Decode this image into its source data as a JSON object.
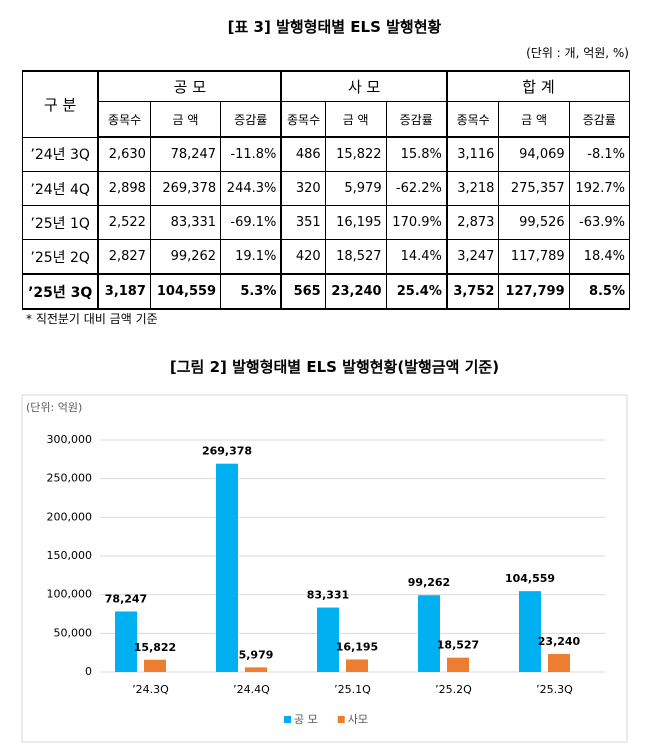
{
  "table_title": "[표 3] 발행형태별 ELS 발행현황",
  "unit": "(단위 : 개, 억원, %)",
  "table": {
    "header": [
      "구 분",
      "공 모",
      "사 모",
      "합 계"
    ],
    "subheader": [
      "종목수",
      "금 액",
      "증감률",
      "종목수",
      "금 액",
      "증감률",
      "종목수",
      "금 액",
      "증감률"
    ],
    "rows": [
      [
        "’24년 3Q",
        "2,630",
        "78,247",
        "-11.8%",
        "486",
        "15,822",
        "15.8%",
        "3,116",
        "94,069",
        "-8.1%"
      ],
      [
        "’24년 4Q",
        "2,898",
        "269,378",
        "244.3%",
        "320",
        "5,979",
        "-62.2%",
        "3,218",
        "275,357",
        "192.7%"
      ],
      [
        "’25년 1Q",
        "2,522",
        "83,331",
        "-69.1%",
        "351",
        "16,195",
        "170.9%",
        "2,873",
        "99,526",
        "-63.9%"
      ],
      [
        "’25년 2Q",
        "2,827",
        "99,262",
        "19.1%",
        "420",
        "18,527",
        "14.4%",
        "3,247",
        "117,789",
        "18.4%"
      ],
      [
        "’25년 3Q",
        "3,187",
        "104,559",
        "5.3%",
        "565",
        "23,240",
        "25.4%",
        "3,752",
        "127,799",
        "8.5%"
      ]
    ]
  },
  "footnote": "* 직전분기 대비 금액 기준",
  "chart_data": {
    "type": "bar",
    "title": "[그림 2] 발행형태별 ELS 발행현황(발행금액 기준)",
    "unit": "(단위: 억원)",
    "categories": [
      "’24.3Q",
      "’24.4Q",
      "’25.1Q",
      "’25.2Q",
      "’25.3Q"
    ],
    "series": [
      {
        "name": "공 모",
        "color": "#00b0f0",
        "values": [
          78247,
          269378,
          83331,
          99262,
          104559
        ],
        "value_labels": [
          "78,247",
          "269,378",
          "83,331",
          "99,262",
          "104,559"
        ]
      },
      {
        "name": "사모",
        "color": "#ed7d31",
        "values": [
          15822,
          5979,
          16195,
          18527,
          23240
        ],
        "value_labels": [
          "15,822",
          "5,979",
          "16,195",
          "18,527",
          "23,240"
        ]
      }
    ],
    "ylim": [
      0,
      300000
    ],
    "yticks": [
      0,
      {
        "value": 50000,
        "label": "50,000"
      },
      {
        "value": 100000,
        "label": "100,000"
      },
      {
        "value": 150000,
        "label": "150,000"
      },
      {
        "value": 200000,
        "label": "200,000"
      },
      {
        "value": 250000,
        "label": "250,000"
      },
      {
        "value": 300000,
        "label": "300,000"
      }
    ],
    "grid": true
  }
}
